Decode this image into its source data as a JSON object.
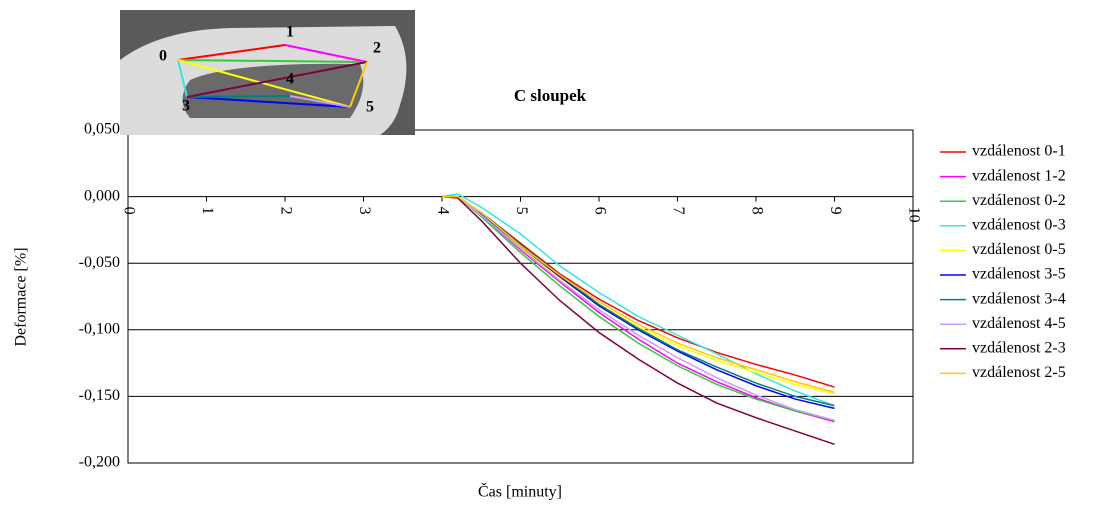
{
  "chart_data": {
    "type": "line",
    "title": "C sloupek",
    "x_label": "Čas [minuty]",
    "y_label": "Deformace [%]",
    "photo_labels": [
      "0",
      "1",
      "2",
      "3",
      "4",
      "5"
    ],
    "x": [
      4,
      4.2,
      4.5,
      5,
      5.5,
      6,
      6.5,
      7,
      7.5,
      8,
      8.5,
      9
    ],
    "xlim": [
      0,
      10
    ],
    "xticks": [
      0,
      1,
      2,
      3,
      4,
      5,
      6,
      7,
      8,
      9,
      10
    ],
    "ylim": [
      -0.2,
      0.05
    ],
    "yticks": [
      {
        "value": -0.2,
        "label": "-0,200"
      },
      {
        "value": -0.15,
        "label": "-0,150"
      },
      {
        "value": -0.1,
        "label": "-0,100"
      },
      {
        "value": -0.05,
        "label": "-0,050"
      },
      {
        "value": 0,
        "label": "0,000"
      },
      {
        "value": 0.05,
        "label": "0,050"
      }
    ],
    "grid": true,
    "series": [
      {
        "name": "vzdálenost 0-1",
        "color": "#ff0000",
        "values": [
          0,
          -0.001,
          -0.012,
          -0.035,
          -0.058,
          -0.077,
          -0.093,
          -0.106,
          -0.117,
          -0.126,
          -0.134,
          -0.143
        ]
      },
      {
        "name": "vzdálenost 1-2",
        "color": "#ff00ff",
        "values": [
          0,
          0,
          -0.014,
          -0.04,
          -0.064,
          -0.087,
          -0.107,
          -0.125,
          -0.139,
          -0.151,
          -0.161,
          -0.169
        ]
      },
      {
        "name": "vzdálenost 0-2",
        "color": "#33cc33",
        "values": [
          0,
          0,
          -0.015,
          -0.042,
          -0.067,
          -0.09,
          -0.11,
          -0.127,
          -0.141,
          -0.152,
          -0.161,
          -0.168
        ]
      },
      {
        "name": "vzdálenost 0-3",
        "color": "#33e6e6",
        "values": [
          0,
          0.002,
          -0.008,
          -0.028,
          -0.052,
          -0.072,
          -0.09,
          -0.104,
          -0.118,
          -0.133,
          -0.146,
          -0.157
        ]
      },
      {
        "name": "vzdálenost 0-5",
        "color": "#ffff00",
        "values": [
          0,
          0,
          -0.013,
          -0.038,
          -0.061,
          -0.081,
          -0.098,
          -0.112,
          -0.123,
          -0.132,
          -0.141,
          -0.148
        ]
      },
      {
        "name": "vzdálenost 3-5",
        "color": "#0000ff",
        "values": [
          0,
          0,
          -0.013,
          -0.037,
          -0.06,
          -0.082,
          -0.1,
          -0.116,
          -0.13,
          -0.142,
          -0.152,
          -0.159
        ]
      },
      {
        "name": "vzdálenost 3-4",
        "color": "#008080",
        "values": [
          0,
          0,
          -0.012,
          -0.036,
          -0.059,
          -0.081,
          -0.099,
          -0.115,
          -0.128,
          -0.14,
          -0.15,
          -0.157
        ]
      },
      {
        "name": "vzdálenost 4-5",
        "color": "#cc99ff",
        "values": [
          0,
          0,
          -0.014,
          -0.039,
          -0.063,
          -0.085,
          -0.104,
          -0.121,
          -0.136,
          -0.149,
          -0.16,
          -0.168
        ]
      },
      {
        "name": "vzdálenost 2-3",
        "color": "#800040",
        "values": [
          0,
          -0.001,
          -0.018,
          -0.05,
          -0.078,
          -0.102,
          -0.122,
          -0.14,
          -0.155,
          -0.166,
          -0.176,
          -0.186
        ]
      },
      {
        "name": "vzdálenost 2-5",
        "color": "#ffcc00",
        "values": [
          0,
          0,
          -0.012,
          -0.037,
          -0.059,
          -0.079,
          -0.096,
          -0.11,
          -0.121,
          -0.13,
          -0.139,
          -0.147
        ]
      }
    ]
  }
}
